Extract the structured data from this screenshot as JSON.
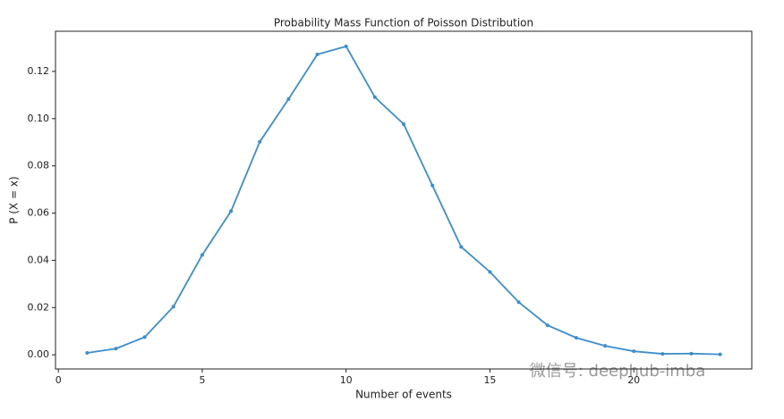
{
  "chart_data": {
    "type": "line",
    "title": "Probability Mass Function of Poisson Distribution",
    "xlabel": "Number of events",
    "ylabel": "P (X = x)",
    "annotation": "微信号: deephub-imba",
    "x": [
      1,
      2,
      3,
      4,
      5,
      6,
      7,
      8,
      9,
      10,
      11,
      12,
      13,
      14,
      15,
      16,
      17,
      18,
      19,
      20,
      21,
      22,
      23
    ],
    "series": [
      {
        "color": "#3b8ecb",
        "values": [
          0.0008,
          0.0026,
          0.0075,
          0.0204,
          0.0423,
          0.0608,
          0.0902,
          0.1083,
          0.1272,
          0.1306,
          0.1091,
          0.0977,
          0.0717,
          0.0457,
          0.0351,
          0.0223,
          0.0125,
          0.0072,
          0.0038,
          0.0015,
          0.0004,
          0.0005,
          0.0002
        ]
      }
    ],
    "xlim": [
      -0.1,
      24.1
    ],
    "ylim": [
      -0.006,
      0.137
    ],
    "xticks": [
      0,
      5,
      10,
      15,
      20
    ],
    "yticks": [
      {
        "value": 0,
        "label": "0.00"
      },
      {
        "value": 0.02,
        "label": "0.02"
      },
      {
        "value": 0.04,
        "label": "0.04"
      },
      {
        "value": 0.06,
        "label": "0.06"
      },
      {
        "value": 0.08,
        "label": "0.08"
      },
      {
        "value": 0.1,
        "label": "0.10"
      },
      {
        "value": 0.12,
        "label": "0.12"
      }
    ]
  }
}
